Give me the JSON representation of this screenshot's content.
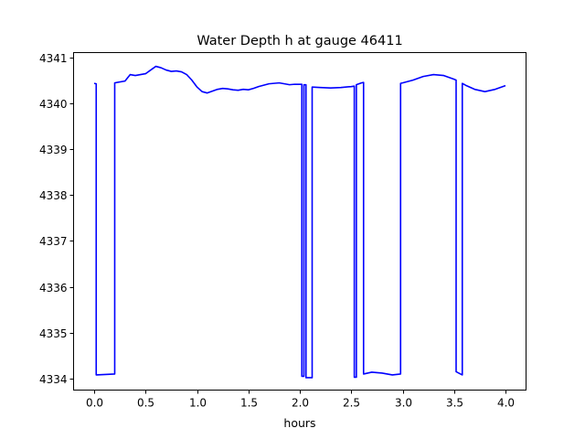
{
  "chart_data": {
    "type": "line",
    "title": "Water Depth h at gauge 46411",
    "xlabel": "hours",
    "ylabel": "",
    "xlim": [
      -0.2,
      4.2
    ],
    "ylim": [
      4333.75,
      4341.1
    ],
    "xticks": [
      0.0,
      0.5,
      1.0,
      1.5,
      2.0,
      2.5,
      3.0,
      3.5,
      4.0
    ],
    "xtick_labels": [
      "0.0",
      "0.5",
      "1.0",
      "1.5",
      "2.0",
      "2.5",
      "3.0",
      "3.5",
      "4.0"
    ],
    "yticks": [
      4334,
      4335,
      4336,
      4337,
      4338,
      4339,
      4340,
      4341
    ],
    "ytick_labels": [
      "4334",
      "4335",
      "4336",
      "4337",
      "4338",
      "4339",
      "4340",
      "4341"
    ],
    "grid": false,
    "legend": "none",
    "series": [
      {
        "color": "#0000ff",
        "x": [
          0.0,
          0.02,
          0.02,
          0.2,
          0.2,
          0.3,
          0.35,
          0.4,
          0.45,
          0.5,
          0.55,
          0.6,
          0.65,
          0.7,
          0.75,
          0.8,
          0.85,
          0.9,
          0.95,
          1.0,
          1.05,
          1.1,
          1.15,
          1.2,
          1.25,
          1.3,
          1.35,
          1.4,
          1.45,
          1.5,
          1.55,
          1.6,
          1.7,
          1.8,
          1.85,
          1.9,
          1.95,
          2.02,
          2.02,
          2.04,
          2.04,
          2.06,
          2.06,
          2.08,
          2.12,
          2.12,
          2.2,
          2.3,
          2.4,
          2.5,
          2.53,
          2.53,
          2.55,
          2.55,
          2.6,
          2.62,
          2.62,
          2.7,
          2.8,
          2.9,
          2.98,
          2.98,
          3.0,
          3.1,
          3.2,
          3.3,
          3.4,
          3.5,
          3.52,
          3.52,
          3.58,
          3.58,
          3.62,
          3.7,
          3.8,
          3.9,
          4.0
        ],
        "y": [
          4340.43,
          4340.42,
          4334.08,
          4334.1,
          4340.44,
          4340.48,
          4340.62,
          4340.6,
          4340.62,
          4340.64,
          4340.72,
          4340.8,
          4340.77,
          4340.72,
          4340.69,
          4340.7,
          4340.68,
          4340.62,
          4340.5,
          4340.35,
          4340.25,
          4340.22,
          4340.26,
          4340.3,
          4340.32,
          4340.31,
          4340.29,
          4340.28,
          4340.3,
          4340.29,
          4340.32,
          4340.36,
          4340.42,
          4340.44,
          4340.42,
          4340.4,
          4340.41,
          4340.41,
          4334.05,
          4334.05,
          4340.4,
          4340.4,
          4334.02,
          4334.02,
          4334.02,
          4340.35,
          4340.34,
          4340.33,
          4340.34,
          4340.36,
          4340.37,
          4334.03,
          4334.03,
          4340.4,
          4340.44,
          4340.45,
          4334.1,
          4334.14,
          4334.12,
          4334.08,
          4334.1,
          4340.43,
          4340.44,
          4340.5,
          4340.58,
          4340.62,
          4340.6,
          4340.52,
          4340.5,
          4334.15,
          4334.08,
          4340.43,
          4340.38,
          4340.3,
          4340.25,
          4340.3,
          4340.38
        ]
      }
    ]
  }
}
